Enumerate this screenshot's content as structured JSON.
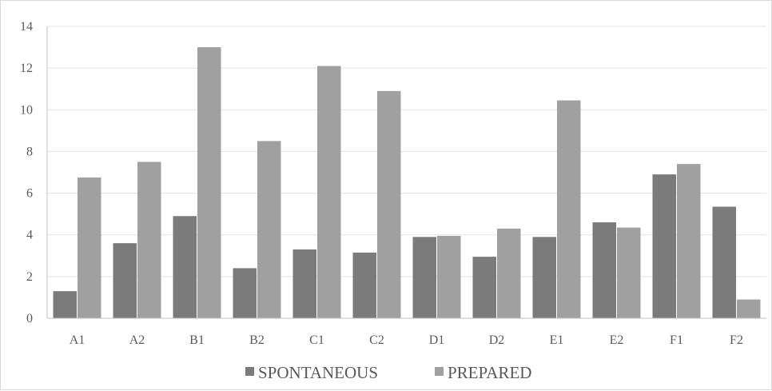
{
  "chart_data": {
    "type": "bar",
    "title": "",
    "xlabel": "",
    "ylabel": "",
    "categories": [
      "A1",
      "A2",
      "B1",
      "B2",
      "C1",
      "C2",
      "D1",
      "D2",
      "E1",
      "E2",
      "F1",
      "F2"
    ],
    "series": [
      {
        "name": "SPONTANEOUS",
        "color": "#7b7b7b",
        "values": [
          1.3,
          3.6,
          4.9,
          2.4,
          3.3,
          3.15,
          3.9,
          2.95,
          3.9,
          4.6,
          6.9,
          5.35
        ]
      },
      {
        "name": "PREPARED",
        "color": "#a0a0a0",
        "values": [
          6.75,
          7.5,
          13.0,
          8.5,
          12.1,
          10.9,
          3.95,
          4.3,
          10.45,
          4.35,
          7.4,
          0.9
        ]
      }
    ],
    "ylim": [
      0,
      14
    ],
    "yticks": [
      0,
      2,
      4,
      6,
      8,
      10,
      12,
      14
    ],
    "grid": true,
    "legend_position": "bottom"
  }
}
